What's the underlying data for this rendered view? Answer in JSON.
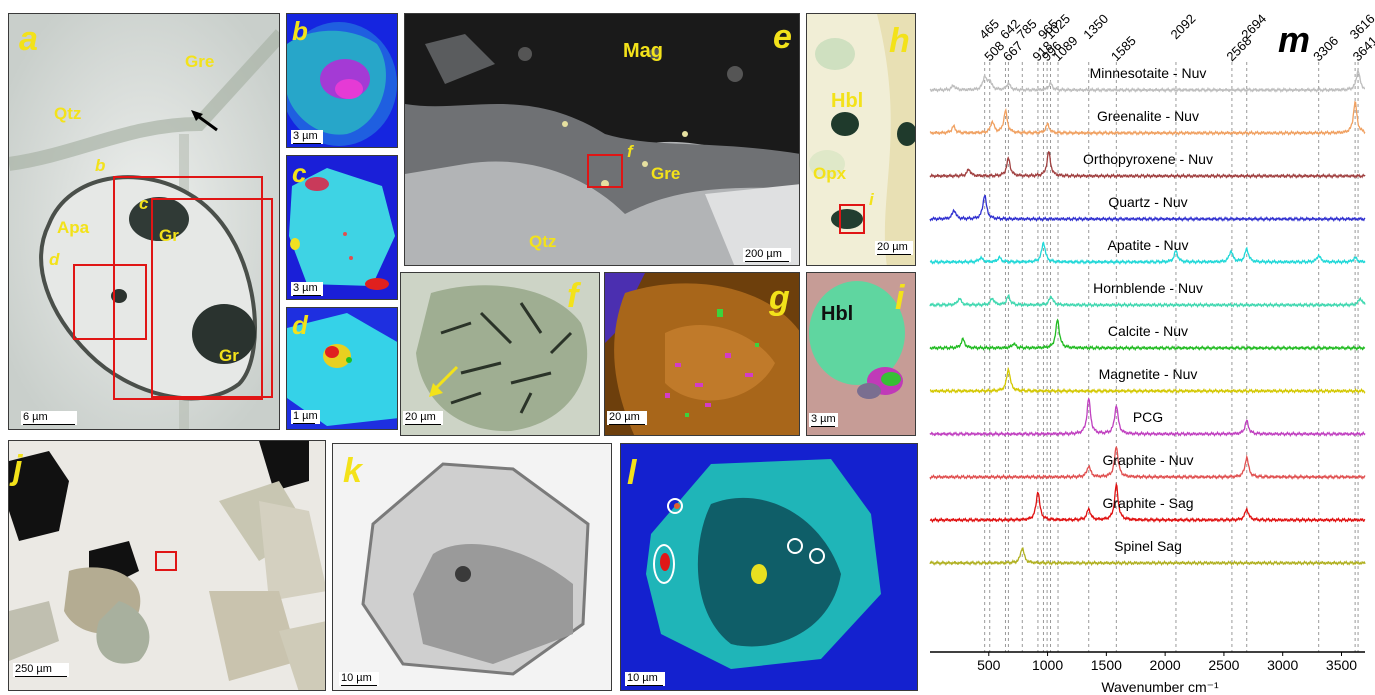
{
  "panels": {
    "a": {
      "letter": "a",
      "labels": {
        "gre": "Gre",
        "qtz": "Qtz",
        "b": "b",
        "c": "c",
        "d": "d",
        "apa": "Apa",
        "gr1": "Gr",
        "gr2": "Gr"
      },
      "scale": "6 µm"
    },
    "b": {
      "letter": "b",
      "scale": "3 µm"
    },
    "c": {
      "letter": "c",
      "scale": "3 µm"
    },
    "d": {
      "letter": "d",
      "scale": "1 µm"
    },
    "e": {
      "letter": "e",
      "labels": {
        "mag": "Mag",
        "f": "f",
        "gre": "Gre",
        "qtz": "Qtz"
      },
      "scale": "200 µm"
    },
    "f": {
      "letter": "f",
      "scale": "20 µm"
    },
    "g": {
      "letter": "g",
      "scale": "20 µm"
    },
    "h": {
      "letter": "h",
      "labels": {
        "hbl": "Hbl",
        "opx": "Opx",
        "i": "i"
      },
      "scale": "20 µm"
    },
    "i": {
      "letter": "i",
      "labels": {
        "hbl": "Hbl"
      },
      "scale": "3 µm"
    },
    "j": {
      "letter": "j",
      "scale": "250 µm"
    },
    "k": {
      "letter": "k",
      "scale": "10 µm"
    },
    "l": {
      "letter": "l",
      "scale": "10 µm"
    }
  },
  "chart_data": {
    "type": "line",
    "panel_letter": "m",
    "xlabel": "Wavenumber cm⁻¹",
    "xlim": [
      0,
      3700
    ],
    "x_ticks": [
      500,
      1000,
      1500,
      2000,
      2500,
      3000,
      3500
    ],
    "peak_markers": [
      465,
      508,
      642,
      667,
      785,
      918,
      965,
      996,
      1025,
      1089,
      1350,
      1585,
      2092,
      2568,
      2694,
      3306,
      3616,
      3641
    ],
    "series": [
      {
        "name": "Minnesotaite - Nuv",
        "color": "#bdbdbd",
        "peaks": [
          [
            200,
            0.2
          ],
          [
            465,
            0.6
          ],
          [
            508,
            0.4
          ],
          [
            667,
            0.3
          ],
          [
            1025,
            0.3
          ],
          [
            3641,
            0.9
          ]
        ]
      },
      {
        "name": "Greenalite - Nuv",
        "color": "#f0a060",
        "peaks": [
          [
            200,
            0.3
          ],
          [
            530,
            0.5
          ],
          [
            642,
            1.0
          ],
          [
            1000,
            0.4
          ],
          [
            3616,
            1.4
          ]
        ]
      },
      {
        "name": "Orthopyroxene - Nuv",
        "color": "#a04040",
        "peaks": [
          [
            330,
            0.3
          ],
          [
            667,
            0.8
          ],
          [
            1010,
            1.1
          ]
        ]
      },
      {
        "name": "Quartz - Nuv",
        "color": "#3030d0",
        "peaks": [
          [
            205,
            0.4
          ],
          [
            465,
            1.1
          ]
        ]
      },
      {
        "name": "Apatite - Nuv",
        "color": "#20d8d8",
        "peaks": [
          [
            432,
            0.2
          ],
          [
            590,
            0.2
          ],
          [
            965,
            0.9
          ],
          [
            2092,
            0.5
          ],
          [
            2560,
            0.5
          ],
          [
            2694,
            0.6
          ],
          [
            3306,
            0.3
          ],
          [
            3616,
            0.2
          ]
        ]
      },
      {
        "name": "Hornblende - Nuv",
        "color": "#40d8b0",
        "peaks": [
          [
            250,
            0.3
          ],
          [
            530,
            0.3
          ],
          [
            667,
            0.4
          ],
          [
            1030,
            0.4
          ],
          [
            3660,
            0.3
          ]
        ]
      },
      {
        "name": "Calcite - Nuv",
        "color": "#22bb22",
        "peaks": [
          [
            280,
            0.4
          ],
          [
            712,
            0.2
          ],
          [
            1085,
            1.3
          ]
        ]
      },
      {
        "name": "Magnetite - Nuv",
        "color": "#d4c800",
        "peaks": [
          [
            667,
            1.0
          ]
        ]
      },
      {
        "name": "PCG",
        "color": "#c040c0",
        "peaks": [
          [
            1350,
            1.6
          ],
          [
            1585,
            1.3
          ],
          [
            2694,
            0.6
          ]
        ]
      },
      {
        "name": "Graphite - Nuv",
        "color": "#e05050",
        "peaks": [
          [
            1350,
            0.5
          ],
          [
            1585,
            1.4
          ],
          [
            2694,
            0.9
          ]
        ]
      },
      {
        "name": "Graphite - Sag",
        "color": "#e01010",
        "peaks": [
          [
            918,
            1.3
          ],
          [
            1350,
            0.5
          ],
          [
            1585,
            1.6
          ],
          [
            2694,
            0.5
          ]
        ]
      },
      {
        "name": "Spinel Sag",
        "color": "#b0b020",
        "peaks": [
          [
            785,
            0.7
          ]
        ]
      }
    ]
  }
}
